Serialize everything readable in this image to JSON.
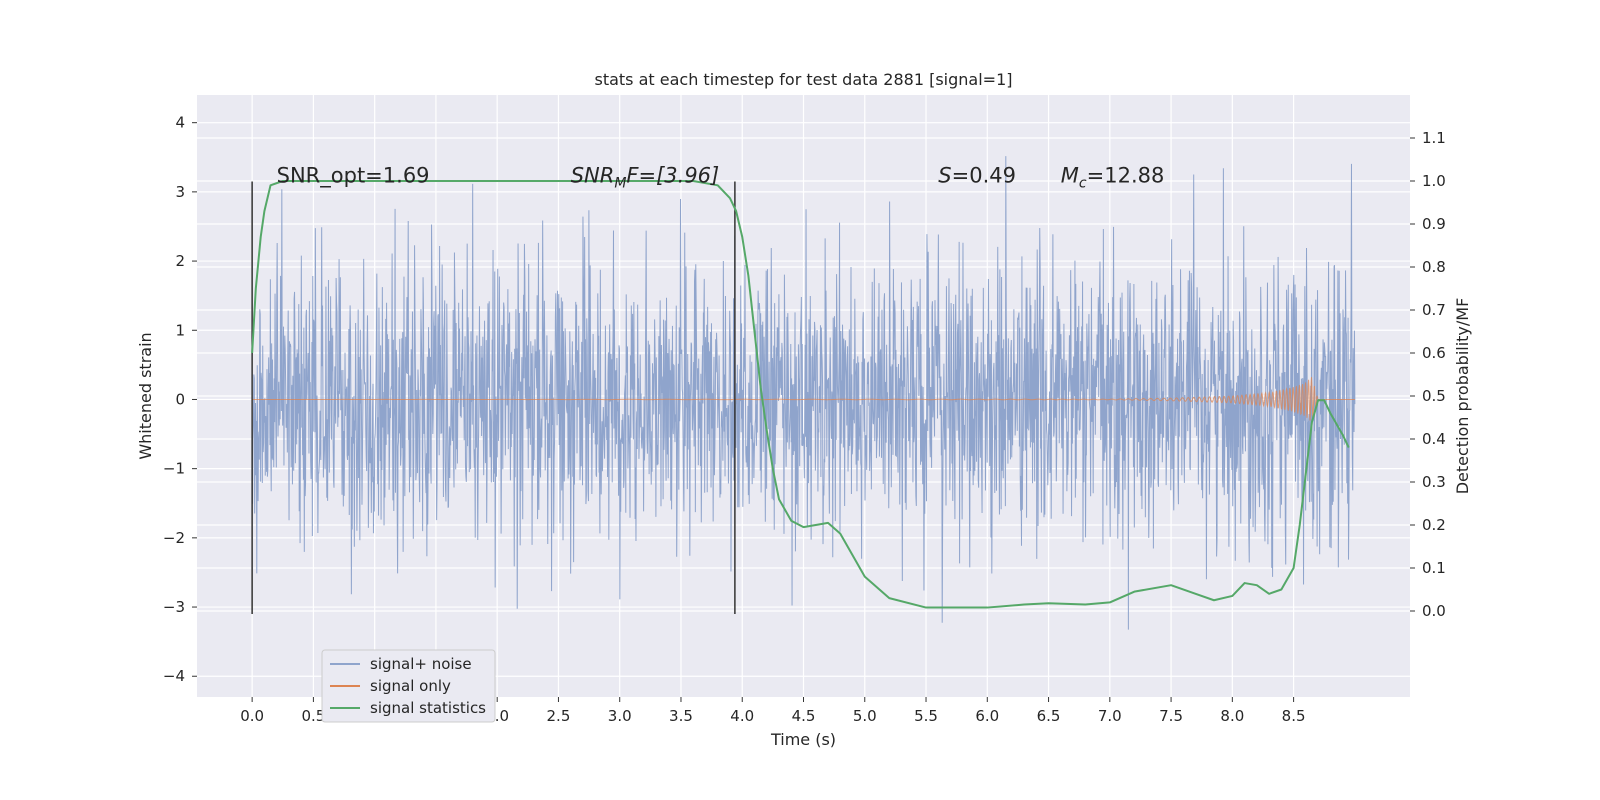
{
  "chart_data": {
    "type": "line",
    "title": "stats at each timestep for test data 2881 [signal=1]",
    "xlabel": "Time (s)",
    "ylabel": "Whitened strain",
    "ylabel_right": "Detection probability/MF",
    "xlim": [
      -0.45,
      9.45
    ],
    "ylim": [
      -4.3,
      4.4
    ],
    "ylim_right": [
      -0.2,
      1.2
    ],
    "x_ticks": [
      0.0,
      0.5,
      1.0,
      1.5,
      2.0,
      2.5,
      3.0,
      3.5,
      4.0,
      4.5,
      5.0,
      5.5,
      6.0,
      6.5,
      7.0,
      7.5,
      8.0,
      8.5
    ],
    "y_ticks": [
      -4,
      -3,
      -2,
      -1,
      0,
      1,
      2,
      3,
      4
    ],
    "y_ticks_right": [
      0.0,
      0.1,
      0.2,
      0.3,
      0.4,
      0.5,
      0.6,
      0.7,
      0.8,
      0.9,
      1.0,
      1.1
    ],
    "grid": true,
    "legend_position": "lower-left",
    "series": [
      {
        "name": "signal+ noise",
        "color": "#8fa4cc",
        "axis": "left",
        "x_range": [
          0.0,
          9.0
        ],
        "approx_band": [
          -2.0,
          1.9
        ],
        "approx_peaks": [
          -3.9,
          4.0
        ]
      },
      {
        "name": "signal only",
        "color": "#dd8452",
        "axis": "left",
        "x": [
          0.0,
          7.0,
          7.5,
          8.0,
          8.3,
          8.5,
          8.6,
          8.65,
          8.7,
          9.0
        ],
        "amplitude": [
          0.0,
          0.005,
          0.02,
          0.05,
          0.1,
          0.18,
          0.25,
          0.33,
          0.0,
          0.0
        ]
      },
      {
        "name": "signal statistics",
        "color": "#55a868",
        "axis": "right",
        "x": [
          0.0,
          0.03,
          0.07,
          0.1,
          0.15,
          0.25,
          0.5,
          1.0,
          2.0,
          3.0,
          3.6,
          3.8,
          3.9,
          3.95,
          4.0,
          4.05,
          4.1,
          4.15,
          4.2,
          4.25,
          4.3,
          4.4,
          4.5,
          4.6,
          4.7,
          4.8,
          5.0,
          5.2,
          5.5,
          6.0,
          6.3,
          6.5,
          6.8,
          7.0,
          7.2,
          7.5,
          7.7,
          7.85,
          8.0,
          8.1,
          8.2,
          8.3,
          8.4,
          8.5,
          8.55,
          8.6,
          8.65,
          8.7,
          8.75,
          8.8,
          8.9,
          8.95
        ],
        "values": [
          0.6,
          0.75,
          0.87,
          0.93,
          0.99,
          1.0,
          1.0,
          1.0,
          1.0,
          1.0,
          1.0,
          0.99,
          0.96,
          0.93,
          0.87,
          0.78,
          0.65,
          0.52,
          0.42,
          0.33,
          0.26,
          0.21,
          0.195,
          0.2,
          0.205,
          0.18,
          0.08,
          0.03,
          0.008,
          0.008,
          0.015,
          0.018,
          0.015,
          0.02,
          0.045,
          0.06,
          0.04,
          0.025,
          0.035,
          0.065,
          0.06,
          0.04,
          0.05,
          0.1,
          0.2,
          0.32,
          0.44,
          0.49,
          0.49,
          0.46,
          0.41,
          0.38
        ]
      }
    ],
    "vlines": [
      {
        "x": 0.0,
        "ymin": -3.1,
        "ymax": 3.15,
        "color": "#333333"
      },
      {
        "x": 3.94,
        "ymin": -3.1,
        "ymax": 3.15,
        "color": "#333333"
      }
    ],
    "annotations": [
      {
        "x": 0.2,
        "y": 3.15,
        "text": "SNR_opt=1.69"
      },
      {
        "x": 2.6,
        "y": 3.15,
        "prefix": "SNR",
        "sub": "M",
        "suffix": "F=[3.96]",
        "italic": true
      },
      {
        "x": 5.6,
        "y": 3.15,
        "prefix": "S",
        "suffix": "=0.49",
        "italic": true
      },
      {
        "x": 6.6,
        "y": 3.15,
        "prefix": "M",
        "sub": "c",
        "suffix": "=12.88",
        "italic": true
      }
    ]
  }
}
